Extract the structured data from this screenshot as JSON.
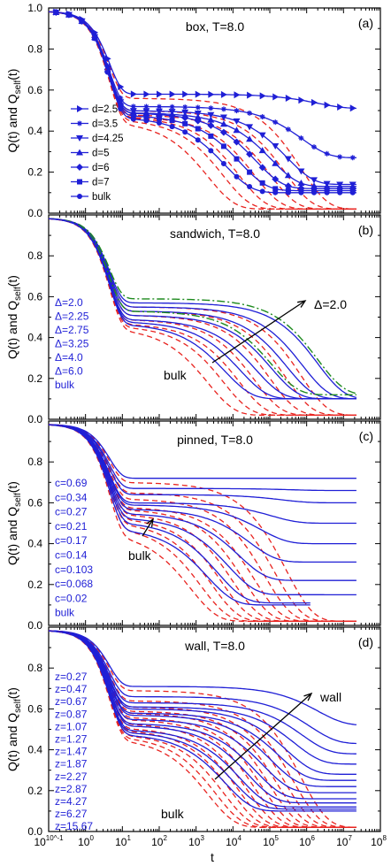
{
  "figure": {
    "ylabel_main": "Q(t) and Q",
    "ylabel_sub": "self",
    "ylabel_tail": "(t)",
    "xlabel": "t",
    "x_tick_labels": [
      "10^-1",
      "10^0",
      "10^1",
      "10^2",
      "10^3",
      "10^4",
      "10^5",
      "10^6",
      "10^7",
      "10^8"
    ],
    "colors": {
      "blue": "#1f1fd6",
      "red": "#e8231f",
      "green": "#1e8a1e",
      "axis": "#000000"
    }
  },
  "chart_data": [
    {
      "type": "line",
      "panel_letter": "(a)",
      "title": "box, T=8.0",
      "xscale": "log",
      "xlim": [
        0.1,
        100000000
      ],
      "ylim": [
        0.0,
        1.0
      ],
      "y_ticks": [
        "0.0",
        "0.2",
        "0.4",
        "0.6",
        "0.8",
        "1.0"
      ],
      "legend": [
        "d=2.5",
        "d=3.5",
        "d=4.25",
        "d=5",
        "d=6",
        "d=7",
        "bulk"
      ],
      "legend_markers": [
        "triangle-right",
        "star",
        "triangle-down",
        "triangle-up",
        "diamond",
        "square",
        "circle"
      ],
      "series": [
        {
          "name": "d=2.5",
          "plateau": 0.58,
          "tail": 0.51
        },
        {
          "name": "d=3.5",
          "plateau": 0.52,
          "tail": 0.27
        },
        {
          "name": "d=4.25",
          "plateau": 0.5,
          "tail": 0.14
        },
        {
          "name": "d=5",
          "plateau": 0.49,
          "tail": 0.13
        },
        {
          "name": "d=6",
          "plateau": 0.49,
          "tail": 0.12
        },
        {
          "name": "d=7",
          "plateau": 0.48,
          "tail": 0.11
        },
        {
          "name": "bulk",
          "plateau": 0.47,
          "tail": 0.1
        }
      ]
    },
    {
      "type": "line",
      "panel_letter": "(b)",
      "title": "sandwich, T=8.0",
      "xscale": "log",
      "xlim": [
        0.1,
        100000000
      ],
      "ylim": [
        0.0,
        1.0
      ],
      "y_ticks": [
        "0.0",
        "0.2",
        "0.4",
        "0.6",
        "0.8"
      ],
      "legend": [
        "Δ=2.0",
        "Δ=2.25",
        "Δ=2.75",
        "Δ=3.25",
        "Δ=4.0",
        "Δ=6.0",
        "bulk"
      ],
      "annotations": [
        "Δ=2.0",
        "bulk"
      ],
      "series": [
        {
          "name": "Δ=2.0",
          "plateau": 0.57
        },
        {
          "name": "Δ=2.25",
          "plateau": 0.55
        },
        {
          "name": "Δ=2.75",
          "plateau": 0.53
        },
        {
          "name": "Δ=3.25",
          "plateau": 0.51
        },
        {
          "name": "Δ=4.0",
          "plateau": 0.49
        },
        {
          "name": "Δ=6.0",
          "plateau": 0.48
        },
        {
          "name": "bulk",
          "plateau": 0.47
        }
      ]
    },
    {
      "type": "line",
      "panel_letter": "(c)",
      "title": "pinned, T=8.0",
      "xscale": "log",
      "xlim": [
        0.1,
        100000000
      ],
      "ylim": [
        0.0,
        1.0
      ],
      "y_ticks": [
        "0.0",
        "0.2",
        "0.4",
        "0.6",
        "0.8"
      ],
      "legend": [
        "c=0.69",
        "c=0.34",
        "c=0.27",
        "c=0.21",
        "c=0.17",
        "c=0.14",
        "c=0.103",
        "c=0.068",
        "c=0.02",
        "bulk"
      ],
      "annotations": [
        "bulk"
      ],
      "series": [
        {
          "name": "c=0.69",
          "plateau": 0.72,
          "tail": 0.72
        },
        {
          "name": "c=0.34",
          "plateau": 0.67,
          "tail": 0.66
        },
        {
          "name": "c=0.27",
          "plateau": 0.64,
          "tail": 0.6
        },
        {
          "name": "c=0.21",
          "plateau": 0.6,
          "tail": 0.5
        },
        {
          "name": "c=0.17",
          "plateau": 0.59,
          "tail": 0.4
        },
        {
          "name": "c=0.14",
          "plateau": 0.57,
          "tail": 0.31
        },
        {
          "name": "c=0.103",
          "plateau": 0.55,
          "tail": 0.22
        },
        {
          "name": "c=0.068",
          "plateau": 0.53,
          "tail": 0.15
        },
        {
          "name": "c=0.02",
          "plateau": 0.51,
          "tail": 0.11
        },
        {
          "name": "bulk",
          "plateau": 0.48,
          "tail": 0.1
        }
      ]
    },
    {
      "type": "line",
      "panel_letter": "(d)",
      "title": "wall, T=8.0",
      "xscale": "log",
      "xlim": [
        0.1,
        100000000
      ],
      "ylim": [
        0.0,
        1.0
      ],
      "y_ticks": [
        "0.0",
        "0.2",
        "0.4",
        "0.6",
        "0.8"
      ],
      "legend": [
        "z=0.27",
        "z=0.47",
        "z=0.67",
        "z=0.87",
        "z=1.07",
        "z=1.27",
        "z=1.47",
        "z=1.87",
        "z=2.27",
        "z=2.87",
        "z=4.27",
        "z=6.27",
        "z=15.67"
      ],
      "annotations": [
        "wall",
        "bulk"
      ],
      "series": [
        {
          "name": "z=0.27",
          "plateau": 0.71,
          "tail": 0.52
        },
        {
          "name": "z=0.47",
          "plateau": 0.66,
          "tail": 0.43
        },
        {
          "name": "z=0.67",
          "plateau": 0.63,
          "tail": 0.38
        },
        {
          "name": "z=0.87",
          "plateau": 0.61,
          "tail": 0.33
        },
        {
          "name": "z=1.07",
          "plateau": 0.6,
          "tail": 0.28
        },
        {
          "name": "z=1.27",
          "plateau": 0.58,
          "tail": 0.25
        },
        {
          "name": "z=1.47",
          "plateau": 0.57,
          "tail": 0.22
        },
        {
          "name": "z=1.87",
          "plateau": 0.55,
          "tail": 0.19
        },
        {
          "name": "z=2.27",
          "plateau": 0.53,
          "tail": 0.16
        },
        {
          "name": "z=2.87",
          "plateau": 0.52,
          "tail": 0.14
        },
        {
          "name": "z=4.27",
          "plateau": 0.5,
          "tail": 0.12
        },
        {
          "name": "z=6.27",
          "plateau": 0.49,
          "tail": 0.11
        },
        {
          "name": "z=15.67",
          "plateau": 0.48,
          "tail": 0.1
        }
      ]
    }
  ]
}
